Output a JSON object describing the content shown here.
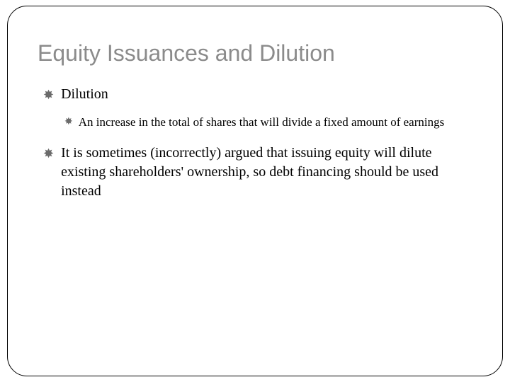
{
  "title": "Equity Issuances and Dilution",
  "bullets": {
    "item1": "Dilution",
    "item1_sub1": "An increase in the total of shares that will divide a fixed amount of earnings",
    "item2": "It is sometimes (incorrectly) argued that issuing equity will dilute existing shareholders' ownership, so debt financing should be used instead"
  },
  "colors": {
    "title_color": "#8b8b8b",
    "text_color": "#000000",
    "bullet_color": "#6b6b6b",
    "border_color": "#000000",
    "background": "#ffffff"
  },
  "typography": {
    "title_fontsize": 32,
    "body_fontsize": 20,
    "sub_fontsize": 17,
    "title_family": "Arial",
    "body_family": "Georgia"
  },
  "layout": {
    "border_radius": 28,
    "padding": 42
  }
}
